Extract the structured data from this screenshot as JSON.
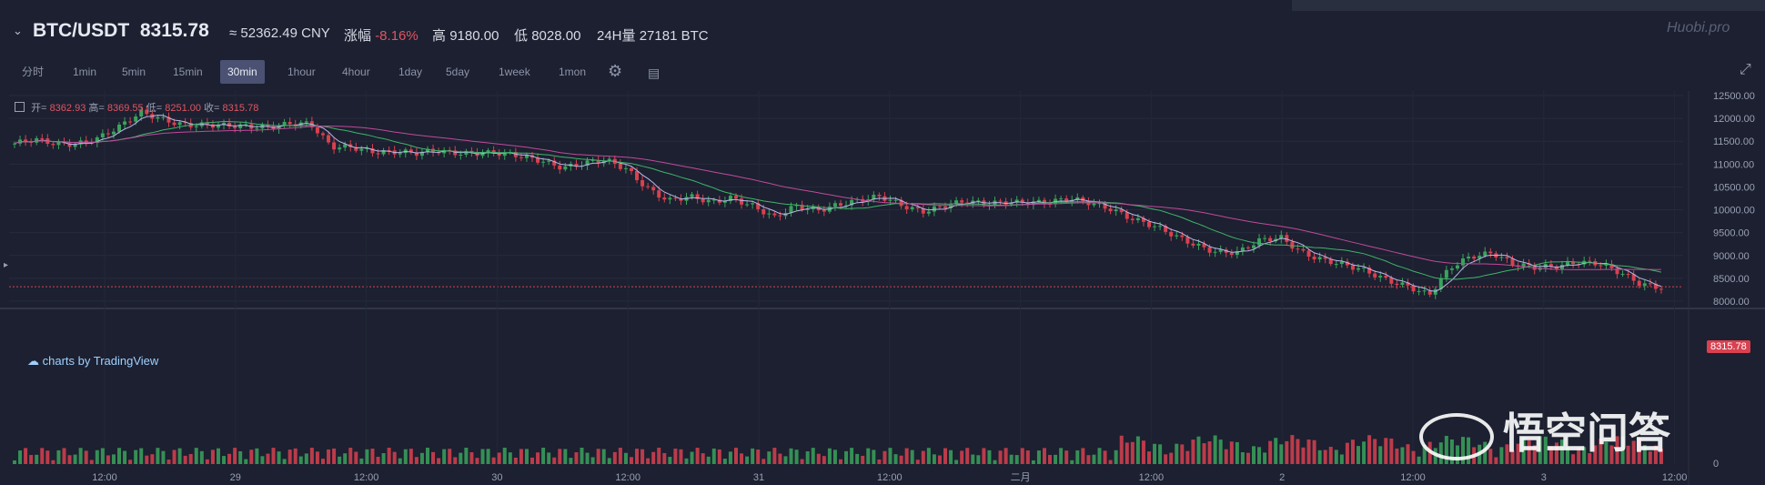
{
  "header": {
    "pair": "BTC/USDT",
    "price": "8315.78",
    "cny": "≈ 52362.49 CNY",
    "change_label": "涨幅",
    "change_value": "-8.16%",
    "high_label": "高",
    "high_value": "9180.00",
    "low_label": "低",
    "low_value": "8028.00",
    "vol_label": "24H量",
    "vol_value": "27181 BTC",
    "logo": "Huobi.pro"
  },
  "toolbar": {
    "timeframes": [
      "分时",
      "1min",
      "5min",
      "15min",
      "30min",
      "1hour",
      "4hour",
      "1day",
      "5day",
      "1week",
      "1mon"
    ],
    "active": "30min",
    "settings_icon": "gear-icon",
    "indicator_icon": "indicators-icon"
  },
  "ohlc": {
    "open_label": "开=",
    "open": "8362.93",
    "high_label": "高=",
    "high": "8369.55",
    "low_label": "低=",
    "low": "8251.00",
    "close_label": "收=",
    "close": "8315.78"
  },
  "attribution": "charts by TradingView",
  "last_price_tag": "8315.78",
  "watermark": "悟空问答",
  "colors": {
    "background": "#1c2030",
    "up": "#3aa35c",
    "down": "#d8414f",
    "ma_short": "#b8b8e8",
    "ma_mid": "#3fb46b",
    "ma_long": "#c04a9a"
  },
  "chart_data": {
    "type": "candlestick",
    "y_axis_labels": [
      "12500.00",
      "12000.00",
      "11500.00",
      "11000.00",
      "10500.00",
      "10000.00",
      "9500.00",
      "9000.00",
      "8500.00",
      "8000.00"
    ],
    "ylim": [
      7900,
      12600
    ],
    "x_axis_labels": [
      "12:00",
      "29",
      "12:00",
      "30",
      "12:00",
      "31",
      "12:00",
      "二月",
      "12:00",
      "2",
      "12:00",
      "3",
      "12:00"
    ],
    "volume_axis_label": "0",
    "close_path": [
      11450,
      11500,
      11420,
      11480,
      11600,
      11800,
      12100,
      12000,
      11900,
      11850,
      11800,
      11820,
      11850,
      11900,
      11850,
      11350,
      11400,
      11300,
      11250,
      11200,
      11300,
      11280,
      11250,
      11200,
      11150,
      11100,
      10950,
      11000,
      11050,
      10900,
      10500,
      10200,
      10250,
      10150,
      10300,
      10100,
      9800,
      10050,
      10000,
      10150,
      10200,
      10250,
      10100,
      10000,
      10100,
      10150,
      10100,
      10200,
      10200,
      10150,
      10200,
      10150,
      10050,
      9800,
      9600,
      9400,
      9250,
      9100,
      9050,
      9300,
      9400,
      9100,
      8900,
      8750,
      8650,
      8500,
      8350,
      8100,
      8700,
      9000,
      9100,
      8800,
      8700,
      8750,
      8900,
      8850,
      8600,
      8350,
      8316
    ]
  }
}
